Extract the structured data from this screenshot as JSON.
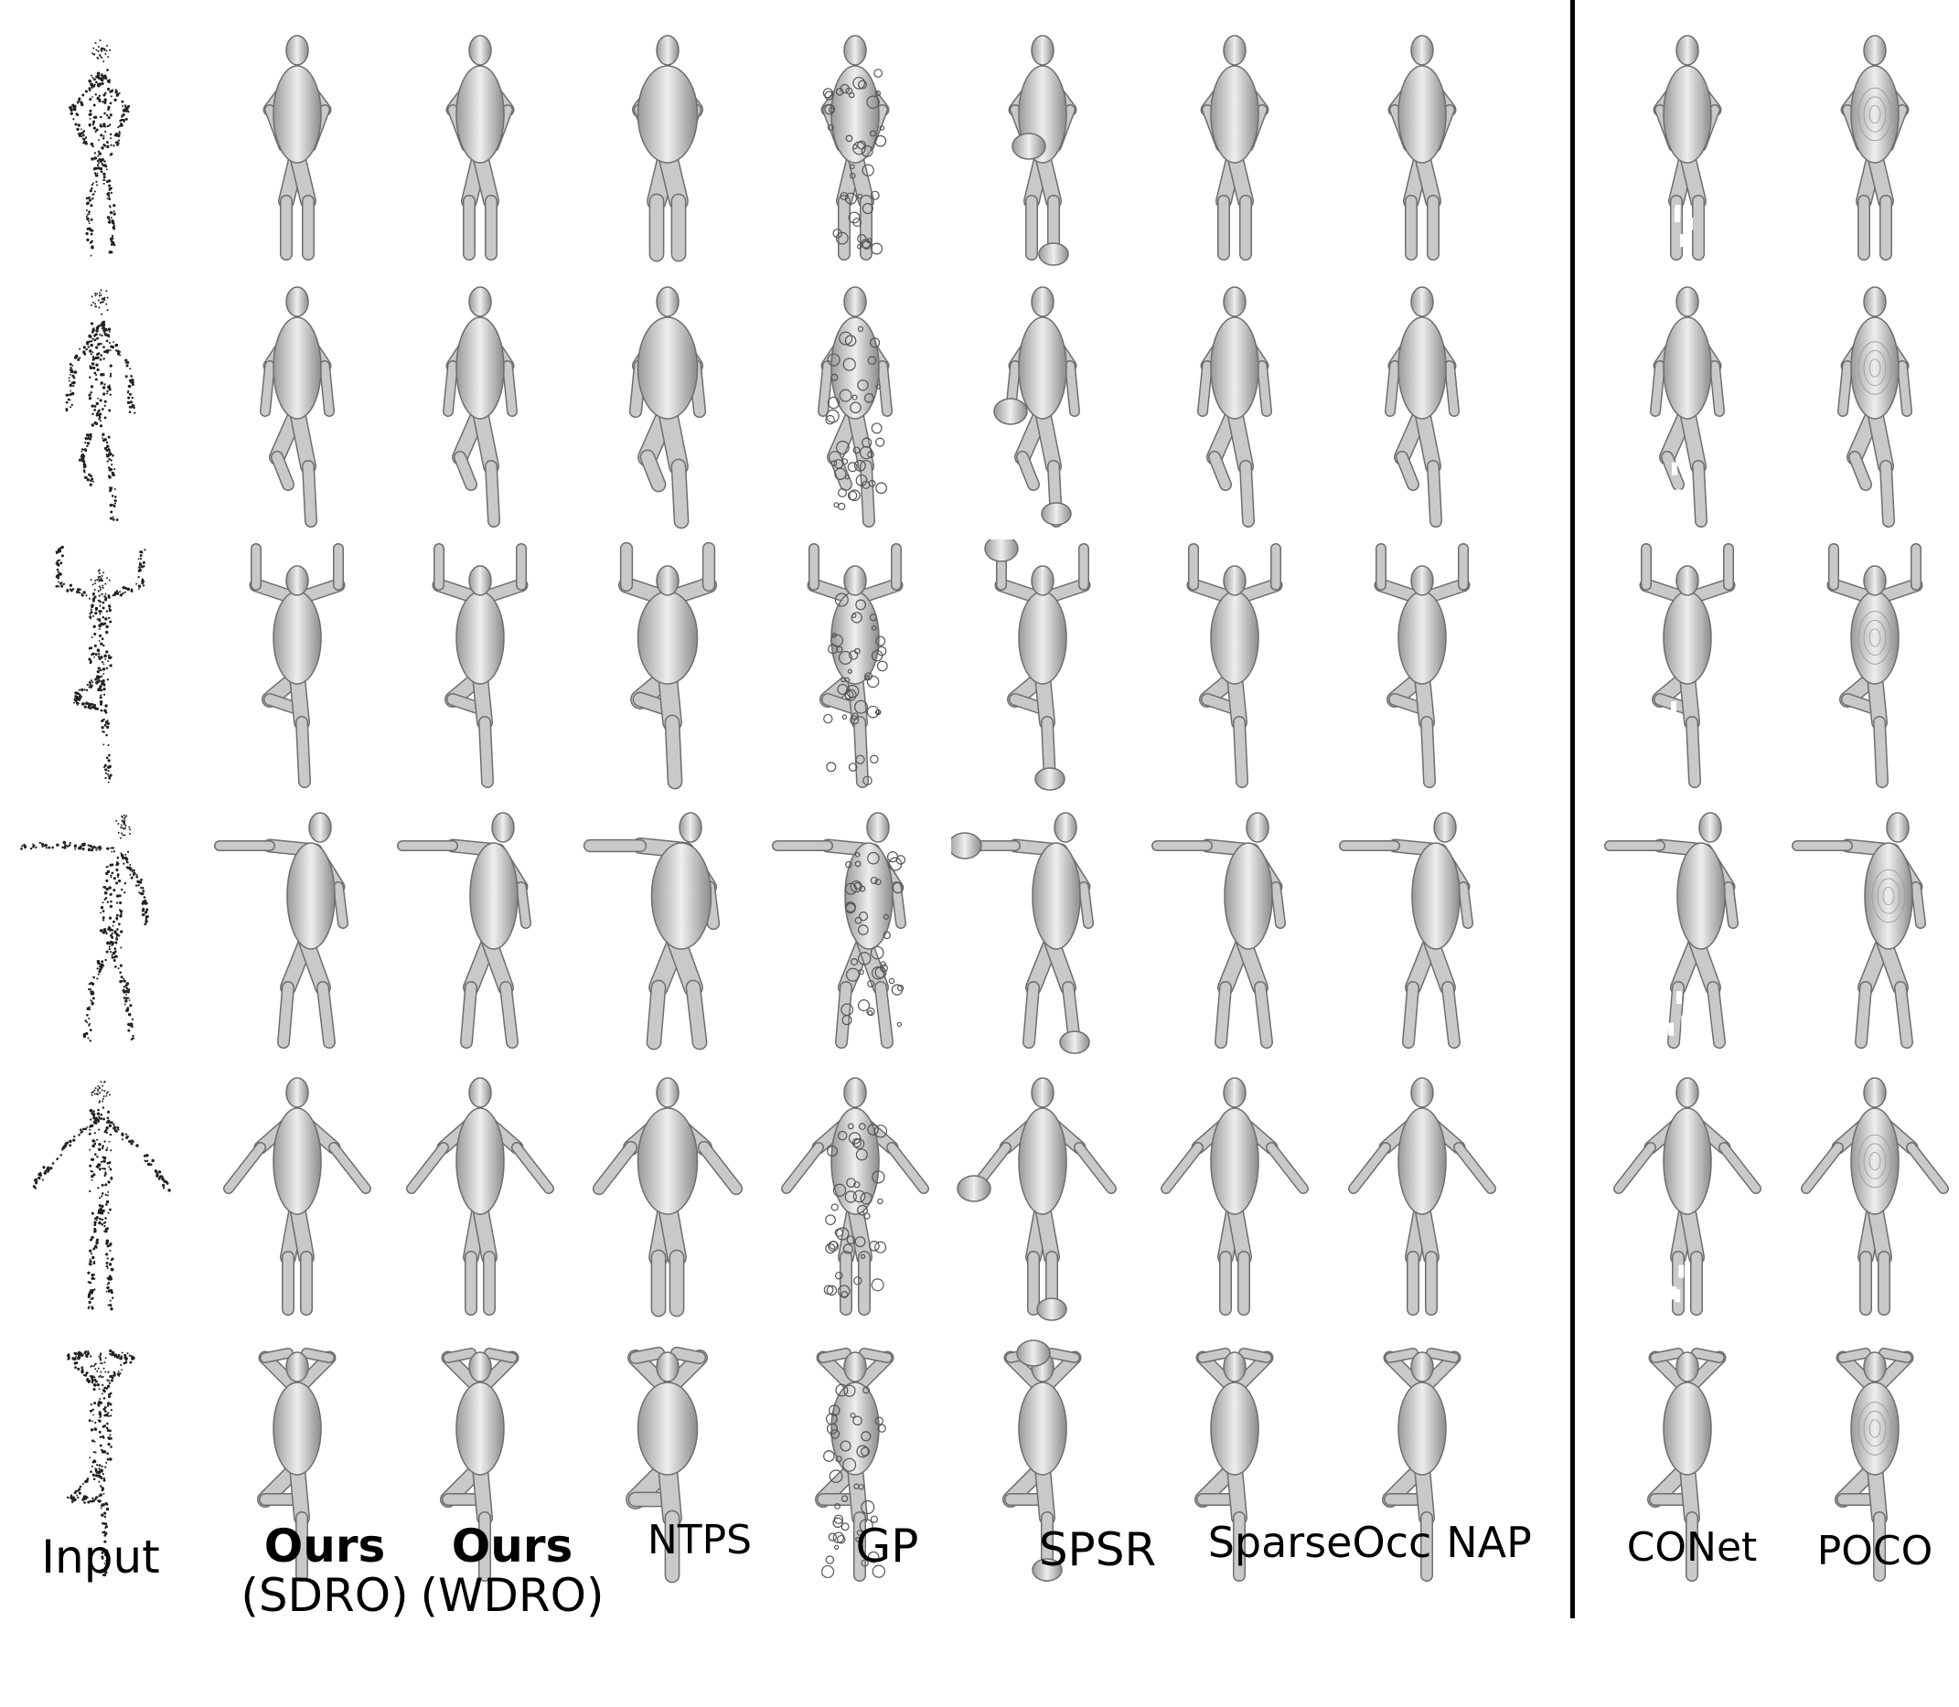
{
  "figure": {
    "columns": [
      {
        "id": "input",
        "title": "Input",
        "subtitle": "",
        "bold": false
      },
      {
        "id": "sdro",
        "title": "Ours",
        "subtitle": "(SDRO)",
        "bold": true
      },
      {
        "id": "wdro",
        "title": "Ours",
        "subtitle": "(WDRO)",
        "bold": true
      },
      {
        "id": "ntps",
        "title": "NTPS",
        "subtitle": "",
        "bold": false
      },
      {
        "id": "gp",
        "title": "GP",
        "subtitle": "",
        "bold": false
      },
      {
        "id": "spsr",
        "title": "SPSR",
        "subtitle": "",
        "bold": false
      },
      {
        "id": "sparseocc",
        "title": "SparseOcc",
        "subtitle": "",
        "bold": false
      },
      {
        "id": "nap",
        "title": "NAP",
        "subtitle": "",
        "bold": false
      },
      {
        "id": "conet",
        "title": "CONet",
        "subtitle": "",
        "bold": false
      },
      {
        "id": "poco",
        "title": "POCO",
        "subtitle": "",
        "bold": false
      }
    ],
    "rows": [
      {
        "pose": "hands-clasped"
      },
      {
        "pose": "kneeling-step"
      },
      {
        "pose": "arms-raised-tree"
      },
      {
        "pose": "arm-extended"
      },
      {
        "pose": "a-pose"
      },
      {
        "pose": "hands-on-head-tree"
      }
    ],
    "mesh_fill": "#c9c9c9",
    "mesh_stroke": "#6e6e6e",
    "point_color": "#222222",
    "divider_color": "#000000"
  }
}
